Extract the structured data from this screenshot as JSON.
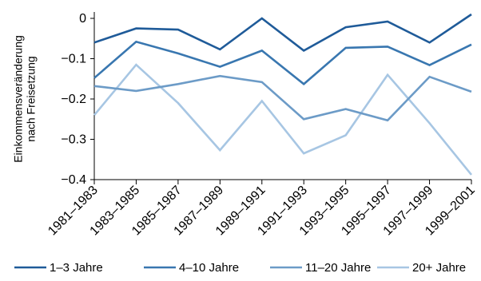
{
  "chart_data": {
    "type": "line",
    "title": "",
    "xlabel": "",
    "ylabel": "Einkommensveränderung nach Freisetzung",
    "categories": [
      "1981–1983",
      "1983–1985",
      "1985–1987",
      "1987–1989",
      "1989–1991",
      "1991–1993",
      "1993–1995",
      "1995–1997",
      "1997–1999",
      "1999–2001"
    ],
    "ylim": [
      -0.4,
      0
    ],
    "yticks": [
      0,
      -0.1,
      -0.2,
      -0.3,
      -0.4
    ],
    "ytick_labels": [
      "0",
      "−0.1",
      "−0.2",
      "−0.3",
      "−0.4"
    ],
    "grid": false,
    "legend": "bottom",
    "series": [
      {
        "name": "1–3 Jahre",
        "color": "#1f5b99",
        "values": [
          -0.06,
          -0.025,
          -0.028,
          -0.077,
          0.0,
          -0.08,
          -0.022,
          -0.008,
          -0.06,
          0.01
        ]
      },
      {
        "name": "4–10 Jahre",
        "color": "#3977b0",
        "values": [
          -0.148,
          -0.058,
          -0.087,
          -0.12,
          -0.08,
          -0.163,
          -0.073,
          -0.07,
          -0.116,
          -0.065
        ]
      },
      {
        "name": "11–20 Jahre",
        "color": "#6c9bc7",
        "values": [
          -0.168,
          -0.18,
          -0.163,
          -0.143,
          -0.158,
          -0.25,
          -0.225,
          -0.253,
          -0.145,
          -0.182
        ]
      },
      {
        "name": "20+ Jahre",
        "color": "#a7c6e3",
        "values": [
          -0.24,
          -0.115,
          -0.21,
          -0.327,
          -0.205,
          -0.335,
          -0.29,
          -0.14,
          -0.26,
          -0.388
        ]
      }
    ]
  }
}
